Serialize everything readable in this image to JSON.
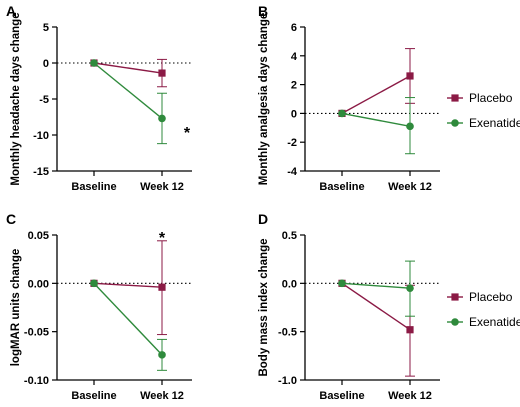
{
  "colors": {
    "placebo": "#8b1a45",
    "exenatide": "#2f8a3c",
    "axis": "#000000"
  },
  "legends": [
    {
      "panel_refs": [
        "A",
        "B"
      ],
      "items": [
        {
          "label": "Placebo",
          "series": "placebo"
        },
        {
          "label": "Exenatide",
          "series": "exenatide"
        }
      ]
    },
    {
      "panel_refs": [
        "C",
        "D"
      ],
      "items": [
        {
          "label": "Placebo",
          "series": "placebo"
        },
        {
          "label": "Exenatide",
          "series": "exenatide"
        }
      ]
    }
  ],
  "chart_data": [
    {
      "panel": "A",
      "type": "line",
      "categories": [
        "Baseline",
        "Week 12"
      ],
      "ylabel": "Monthly headache days change",
      "ylim": [
        -15,
        5
      ],
      "yticks": [
        5,
        0,
        -5,
        -10,
        -15
      ],
      "ytick_labels": [
        "5",
        "0",
        "-5",
        "-10",
        "-15"
      ],
      "zero_reference_line": "dotted",
      "series": [
        {
          "name": "Placebo",
          "key": "placebo",
          "values": [
            0,
            -1.4
          ],
          "error_low": [
            null,
            -3.3
          ],
          "error_high": [
            null,
            0.5
          ]
        },
        {
          "name": "Exenatide",
          "key": "exenatide",
          "values": [
            0,
            -7.7
          ],
          "error_low": [
            null,
            -11.2
          ],
          "error_high": [
            null,
            -4.2
          ]
        }
      ],
      "annotations": [
        {
          "text": "*",
          "x": "Week 12",
          "y": -9.6
        }
      ]
    },
    {
      "panel": "B",
      "type": "line",
      "categories": [
        "Baseline",
        "Week 12"
      ],
      "ylabel": "Monthly analgesia days change",
      "ylim": [
        -4,
        6
      ],
      "yticks": [
        6,
        4,
        2,
        0,
        -2,
        -4
      ],
      "ytick_labels": [
        "6",
        "4",
        "2",
        "0",
        "-2",
        "-4"
      ],
      "zero_reference_line": "dotted",
      "series": [
        {
          "name": "Placebo",
          "key": "placebo",
          "values": [
            0,
            2.6
          ],
          "error_low": [
            null,
            0.7
          ],
          "error_high": [
            null,
            4.5
          ]
        },
        {
          "name": "Exenatide",
          "key": "exenatide",
          "values": [
            0,
            -0.9
          ],
          "error_low": [
            null,
            -2.8
          ],
          "error_high": [
            null,
            1.1
          ]
        }
      ],
      "annotations": []
    },
    {
      "panel": "C",
      "type": "line",
      "categories": [
        "Baseline",
        "Week 12"
      ],
      "ylabel": "logMAR units change",
      "ylim": [
        -0.1,
        0.05
      ],
      "yticks": [
        0.05,
        0.0,
        -0.05,
        -0.1
      ],
      "ytick_labels": [
        "0.05",
        "0.00",
        "-0.05",
        "-0.10"
      ],
      "zero_reference_line": "dotted",
      "series": [
        {
          "name": "Placebo",
          "key": "placebo",
          "values": [
            0,
            -0.004
          ],
          "error_low": [
            null,
            -0.053
          ],
          "error_high": [
            null,
            0.044
          ]
        },
        {
          "name": "Exenatide",
          "key": "exenatide",
          "values": [
            0,
            -0.074
          ],
          "error_low": [
            null,
            -0.09
          ],
          "error_high": [
            null,
            -0.058
          ]
        }
      ],
      "annotations": [
        {
          "text": "*",
          "x": "Week 12",
          "y": 0.048
        }
      ]
    },
    {
      "panel": "D",
      "type": "line",
      "categories": [
        "Baseline",
        "Week 12"
      ],
      "ylabel": "Body mass index change",
      "ylim": [
        -1.0,
        0.5
      ],
      "yticks": [
        0.5,
        0.0,
        -0.5,
        -1.0
      ],
      "ytick_labels": [
        "0.5",
        "0.0",
        "-0.5",
        "-1.0"
      ],
      "zero_reference_line": "dotted",
      "series": [
        {
          "name": "Placebo",
          "key": "placebo",
          "values": [
            0,
            -0.48
          ],
          "error_low": [
            null,
            -0.96
          ],
          "error_high": [
            null,
            -0.02
          ]
        },
        {
          "name": "Exenatide",
          "key": "exenatide",
          "values": [
            0,
            -0.05
          ],
          "error_low": [
            null,
            -0.34
          ],
          "error_high": [
            null,
            0.23
          ]
        }
      ],
      "annotations": []
    }
  ]
}
